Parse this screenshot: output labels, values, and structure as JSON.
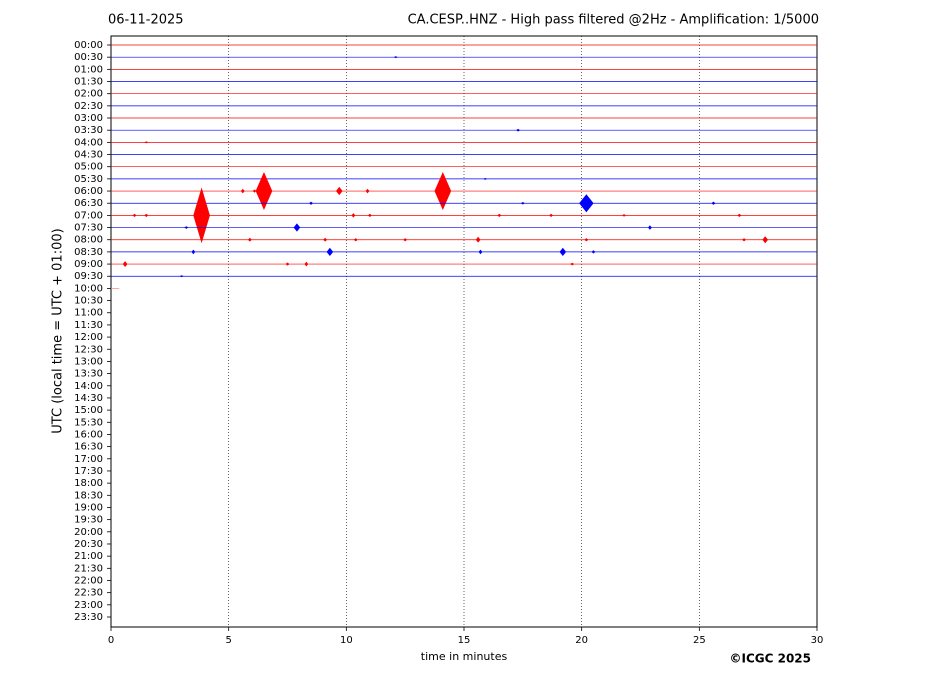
{
  "chart_data": {
    "type": "helicorder",
    "date": "06-11-2025",
    "title": "CA.CESP..HNZ - High pass filtered @2Hz - Amplification: 1/5000",
    "ylabel": "UTC (local time = UTC + 01:00)",
    "xlabel": "time in minutes",
    "credit": "©ICGC 2025",
    "categories": [
      "00:00",
      "00:30",
      "01:00",
      "01:30",
      "02:00",
      "02:30",
      "03:00",
      "03:30",
      "04:00",
      "04:30",
      "05:00",
      "05:30",
      "06:00",
      "06:30",
      "07:00",
      "07:30",
      "08:00",
      "08:30",
      "09:00",
      "09:30",
      "10:00",
      "10:30",
      "11:00",
      "11:30",
      "12:00",
      "12:30",
      "13:00",
      "13:30",
      "14:00",
      "14:30",
      "15:00",
      "15:30",
      "16:00",
      "16:30",
      "17:00",
      "17:30",
      "18:00",
      "18:30",
      "19:00",
      "19:30",
      "20:00",
      "20:30",
      "21:00",
      "21:30",
      "22:00",
      "22:30",
      "23:00",
      "23:30"
    ],
    "xlim": [
      0,
      30
    ],
    "xticks": [
      0,
      5,
      10,
      15,
      20,
      25,
      30
    ],
    "grid": true,
    "traces": [
      {
        "color": "#ff0000",
        "x": [],
        "values": []
      },
      {
        "color": "#0000ff",
        "x": [
          12.1
        ],
        "values": [
          0.1
        ]
      },
      {
        "color": "#ff0000",
        "x": [],
        "values": []
      },
      {
        "color": "#0000ff",
        "x": [],
        "values": []
      },
      {
        "color": "#ff0000",
        "x": [],
        "values": []
      },
      {
        "color": "#0000ff",
        "x": [],
        "values": []
      },
      {
        "color": "#ff0000",
        "x": [],
        "values": []
      },
      {
        "color": "#0000ff",
        "x": [
          17.3
        ],
        "values": [
          0.15
        ]
      },
      {
        "color": "#ff0000",
        "x": [
          1.5
        ],
        "values": [
          0.1
        ]
      },
      {
        "color": "#0000ff",
        "x": [],
        "values": []
      },
      {
        "color": "#ff0000",
        "x": [],
        "values": []
      },
      {
        "color": "#0000ff",
        "x": [
          15.9
        ],
        "values": [
          0.1
        ]
      },
      {
        "color": "#ff0000",
        "x": [
          5.6,
          6.1,
          6.5,
          9.7,
          10.9,
          14.1
        ],
        "values": [
          0.3,
          0.2,
          3.0,
          0.6,
          0.3,
          3.0
        ]
      },
      {
        "color": "#0000ff",
        "x": [
          8.5,
          17.5,
          20.2,
          25.6
        ],
        "values": [
          0.2,
          0.15,
          1.4,
          0.2
        ]
      },
      {
        "color": "#ff0000",
        "x": [
          1.0,
          1.5,
          3.85,
          10.3,
          11.0,
          16.5,
          18.7,
          21.8,
          26.7
        ],
        "values": [
          0.2,
          0.2,
          4.4,
          0.3,
          0.2,
          0.2,
          0.2,
          0.15,
          0.2
        ]
      },
      {
        "color": "#0000ff",
        "x": [
          3.2,
          7.9,
          22.9
        ],
        "values": [
          0.15,
          0.6,
          0.3
        ]
      },
      {
        "color": "#ff0000",
        "x": [
          5.9,
          9.1,
          10.4,
          12.5,
          15.6,
          20.2,
          26.9,
          27.8
        ],
        "values": [
          0.25,
          0.25,
          0.2,
          0.2,
          0.4,
          0.2,
          0.2,
          0.5
        ]
      },
      {
        "color": "#0000ff",
        "x": [
          3.5,
          9.3,
          15.7,
          19.2,
          20.5
        ],
        "values": [
          0.3,
          0.6,
          0.3,
          0.6,
          0.2
        ]
      },
      {
        "color": "#ff0000",
        "x": [
          0.6,
          7.5,
          8.3,
          19.6
        ],
        "values": [
          0.4,
          0.2,
          0.3,
          0.15
        ]
      },
      {
        "color": "#0000ff",
        "x": [
          3.0
        ],
        "values": [
          0.1
        ]
      },
      {
        "color": "#ff8080",
        "x": [],
        "values": [],
        "end": 0.35
      }
    ]
  }
}
